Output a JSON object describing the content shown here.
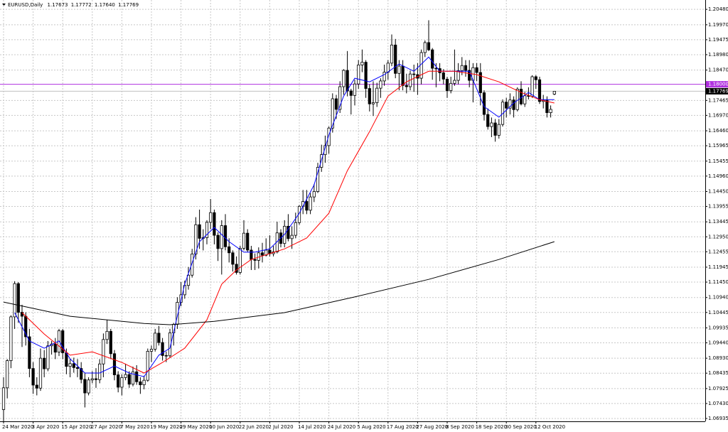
{
  "chart_data": {
    "type": "candlestick",
    "title": "EURUSD,Daily",
    "header_values": [
      "1.17673",
      "1.17772",
      "1.17640",
      "1.17769"
    ],
    "categories": [
      "24 Mar 2020",
      null,
      null,
      null,
      null,
      null,
      null,
      null,
      "3 Apr 2020",
      null,
      null,
      null,
      null,
      null,
      null,
      null,
      "15 Apr 2020",
      null,
      null,
      null,
      null,
      null,
      null,
      null,
      "27 Apr 2020",
      null,
      null,
      null,
      null,
      null,
      null,
      null,
      "7 May 2020",
      null,
      null,
      null,
      null,
      null,
      null,
      null,
      "19 May 2020",
      null,
      null,
      null,
      null,
      null,
      null,
      null,
      "29 May 2020",
      null,
      null,
      null,
      null,
      null,
      null,
      null,
      "10 Jun 2020",
      null,
      null,
      null,
      null,
      null,
      null,
      null,
      "22 Jun 2020",
      null,
      null,
      null,
      null,
      null,
      null,
      null,
      "2 Jul 2020",
      null,
      null,
      null,
      null,
      null,
      null,
      null,
      "14 Jul 2020",
      null,
      null,
      null,
      null,
      null,
      null,
      null,
      "24 Jul 2020",
      null,
      null,
      null,
      null,
      null,
      null,
      null,
      "5 Aug 2020",
      null,
      null,
      null,
      null,
      null,
      null,
      null,
      "17 Aug 2020",
      null,
      null,
      null,
      null,
      null,
      null,
      null,
      "27 Aug 2020",
      null,
      null,
      null,
      null,
      null,
      null,
      null,
      "8 Sep 2020",
      null,
      null,
      null,
      null,
      null,
      null,
      null,
      "18 Sep 2020",
      null,
      null,
      null,
      null,
      null,
      null,
      null,
      "30 Sep 2020",
      null,
      null,
      null,
      null,
      null,
      null,
      null,
      "12 Oct 2020",
      null,
      null,
      null,
      null,
      null
    ],
    "candles": [
      [
        1.0723,
        1.083,
        1.068,
        1.0795
      ],
      [
        1.0795,
        1.089,
        1.076,
        1.0885
      ],
      [
        1.0885,
        1.1035,
        1.086,
        1.103
      ],
      [
        1.103,
        1.1148,
        1.099,
        1.114
      ],
      [
        1.114,
        1.1145,
        1.101,
        1.1045
      ],
      [
        1.1045,
        1.107,
        1.093,
        1.1032
      ],
      [
        1.1032,
        1.1045,
        1.0935,
        1.0964
      ],
      [
        1.0964,
        1.099,
        1.083,
        1.0859
      ],
      [
        1.0859,
        1.088,
        1.0775,
        1.0804
      ],
      [
        1.0804,
        1.083,
        1.077,
        1.0794
      ],
      [
        1.0794,
        1.0925,
        1.0785,
        1.0893
      ],
      [
        1.0893,
        1.092,
        1.083,
        1.0858
      ],
      [
        1.0858,
        1.095,
        1.085,
        1.0934
      ],
      [
        1.0934,
        1.095,
        1.0905,
        1.094
      ],
      [
        1.094,
        1.096,
        1.089,
        1.0913
      ],
      [
        1.0913,
        1.099,
        1.09,
        1.0984
      ],
      [
        1.0984,
        1.099,
        1.089,
        1.0911
      ],
      [
        1.0911,
        1.0925,
        1.084,
        1.0866
      ],
      [
        1.0866,
        1.089,
        1.083,
        1.0875
      ],
      [
        1.0875,
        1.0895,
        1.0845,
        1.0862
      ],
      [
        1.0862,
        1.089,
        1.083,
        1.0859
      ],
      [
        1.0859,
        1.088,
        1.081,
        1.0823
      ],
      [
        1.0823,
        1.0845,
        1.073,
        1.0778
      ],
      [
        1.0778,
        1.083,
        1.077,
        1.0821
      ],
      [
        1.0821,
        1.085,
        1.081,
        1.0825
      ],
      [
        1.0825,
        1.086,
        1.0795,
        1.0822
      ],
      [
        1.0822,
        1.089,
        1.081,
        1.0874
      ],
      [
        1.0874,
        1.0975,
        1.083,
        1.0955
      ],
      [
        1.0955,
        1.102,
        1.094,
        1.0982
      ],
      [
        1.0982,
        1.099,
        1.089,
        1.0908
      ],
      [
        1.0908,
        1.092,
        1.082,
        1.0838
      ],
      [
        1.0838,
        1.085,
        1.078,
        1.0797
      ],
      [
        1.0797,
        1.084,
        1.077,
        1.0829
      ],
      [
        1.0829,
        1.0875,
        1.082,
        1.0839
      ],
      [
        1.0839,
        1.085,
        1.0795,
        1.0807
      ],
      [
        1.0807,
        1.0865,
        1.08,
        1.0848
      ],
      [
        1.0848,
        1.087,
        1.0805,
        1.0815
      ],
      [
        1.0815,
        1.083,
        1.0775,
        1.0805
      ],
      [
        1.0805,
        1.0835,
        1.079,
        1.082
      ],
      [
        1.082,
        1.0925,
        1.0815,
        1.0916
      ],
      [
        1.0916,
        1.0935,
        1.088,
        1.0923
      ],
      [
        1.0923,
        1.099,
        1.0915,
        1.0976
      ],
      [
        1.0976,
        1.1,
        1.0935,
        1.0945
      ],
      [
        1.0945,
        1.096,
        1.0885,
        1.0902
      ],
      [
        1.0902,
        1.0915,
        1.088,
        1.0901
      ],
      [
        1.0901,
        1.099,
        1.0895,
        1.0977
      ],
      [
        1.0977,
        1.101,
        1.0935,
        1.1005
      ],
      [
        1.1005,
        1.1095,
        1.099,
        1.1078
      ],
      [
        1.1078,
        1.1145,
        1.1065,
        1.1103
      ],
      [
        1.1103,
        1.115,
        1.109,
        1.1134
      ],
      [
        1.1134,
        1.1195,
        1.112,
        1.1168
      ],
      [
        1.1168,
        1.1255,
        1.116,
        1.1238
      ],
      [
        1.1238,
        1.136,
        1.122,
        1.1335
      ],
      [
        1.1335,
        1.1385,
        1.1255,
        1.129
      ],
      [
        1.129,
        1.132,
        1.125,
        1.1292
      ],
      [
        1.1292,
        1.135,
        1.127,
        1.1343
      ],
      [
        1.1343,
        1.142,
        1.132,
        1.1375
      ],
      [
        1.1375,
        1.1385,
        1.127,
        1.13
      ],
      [
        1.13,
        1.131,
        1.1215,
        1.1256
      ],
      [
        1.1256,
        1.135,
        1.117,
        1.1332
      ],
      [
        1.1332,
        1.137,
        1.125,
        1.1262
      ],
      [
        1.1262,
        1.129,
        1.121,
        1.1242
      ],
      [
        1.1242,
        1.125,
        1.118,
        1.1204
      ],
      [
        1.1204,
        1.123,
        1.117,
        1.1177
      ],
      [
        1.1177,
        1.1265,
        1.117,
        1.1257
      ],
      [
        1.1257,
        1.135,
        1.125,
        1.1307
      ],
      [
        1.1307,
        1.132,
        1.1245,
        1.1251
      ],
      [
        1.1251,
        1.1265,
        1.1185,
        1.122
      ],
      [
        1.122,
        1.124,
        1.1185,
        1.1217
      ],
      [
        1.1217,
        1.126,
        1.119,
        1.1242
      ],
      [
        1.1242,
        1.1275,
        1.121,
        1.1234
      ],
      [
        1.1234,
        1.129,
        1.123,
        1.1251
      ],
      [
        1.1251,
        1.13,
        1.123,
        1.1239
      ],
      [
        1.1239,
        1.1265,
        1.123,
        1.1245
      ],
      [
        1.1245,
        1.1345,
        1.124,
        1.1308
      ],
      [
        1.1308,
        1.132,
        1.126,
        1.1273
      ],
      [
        1.1273,
        1.135,
        1.126,
        1.133
      ],
      [
        1.133,
        1.137,
        1.128,
        1.1289
      ],
      [
        1.1289,
        1.133,
        1.1255,
        1.13
      ],
      [
        1.13,
        1.1375,
        1.129,
        1.1342
      ],
      [
        1.1342,
        1.14,
        1.1335,
        1.1396
      ],
      [
        1.1396,
        1.145,
        1.137,
        1.1412
      ],
      [
        1.1412,
        1.145,
        1.137,
        1.1383
      ],
      [
        1.1383,
        1.144,
        1.137,
        1.1427
      ],
      [
        1.1427,
        1.147,
        1.141,
        1.1445
      ],
      [
        1.1445,
        1.154,
        1.144,
        1.1525
      ],
      [
        1.1525,
        1.16,
        1.151,
        1.1567
      ],
      [
        1.1567,
        1.163,
        1.154,
        1.1597
      ],
      [
        1.1597,
        1.166,
        1.157,
        1.1655
      ],
      [
        1.1655,
        1.177,
        1.164,
        1.1752
      ],
      [
        1.1752,
        1.1765,
        1.1685,
        1.1717
      ],
      [
        1.1717,
        1.181,
        1.1705,
        1.1792
      ],
      [
        1.1792,
        1.185,
        1.1765,
        1.1846
      ],
      [
        1.1846,
        1.191,
        1.176,
        1.1778
      ],
      [
        1.1778,
        1.1785,
        1.17,
        1.1763
      ],
      [
        1.1763,
        1.1815,
        1.173,
        1.1801
      ],
      [
        1.1801,
        1.188,
        1.1785,
        1.1864
      ],
      [
        1.1864,
        1.1915,
        1.184,
        1.1873
      ],
      [
        1.1873,
        1.188,
        1.1755,
        1.1786
      ],
      [
        1.1786,
        1.18,
        1.171,
        1.1735
      ],
      [
        1.1735,
        1.181,
        1.1695,
        1.1739
      ],
      [
        1.1739,
        1.1805,
        1.1725,
        1.1787
      ],
      [
        1.1787,
        1.182,
        1.1755,
        1.1811
      ],
      [
        1.1811,
        1.1865,
        1.1795,
        1.184
      ],
      [
        1.184,
        1.188,
        1.1815,
        1.187
      ],
      [
        1.187,
        1.1965,
        1.186,
        1.193
      ],
      [
        1.193,
        1.195,
        1.182,
        1.1836
      ],
      [
        1.1836,
        1.188,
        1.178,
        1.186
      ],
      [
        1.186,
        1.188,
        1.178,
        1.1796
      ],
      [
        1.1796,
        1.1835,
        1.177,
        1.1792
      ],
      [
        1.1792,
        1.1845,
        1.178,
        1.1834
      ],
      [
        1.1834,
        1.1865,
        1.1775,
        1.1832
      ],
      [
        1.1832,
        1.187,
        1.1765,
        1.182
      ],
      [
        1.182,
        1.1915,
        1.18,
        1.1905
      ],
      [
        1.1905,
        1.1945,
        1.189,
        1.1938
      ],
      [
        1.1938,
        1.2012,
        1.191,
        1.1914
      ],
      [
        1.1914,
        1.192,
        1.1815,
        1.1853
      ],
      [
        1.1853,
        1.187,
        1.179,
        1.1852
      ],
      [
        1.1852,
        1.187,
        1.181,
        1.1838
      ],
      [
        1.1838,
        1.185,
        1.18,
        1.1817
      ],
      [
        1.1817,
        1.1825,
        1.1755,
        1.1779
      ],
      [
        1.1779,
        1.1825,
        1.177,
        1.1803
      ],
      [
        1.1803,
        1.1915,
        1.1795,
        1.1813
      ],
      [
        1.1813,
        1.187,
        1.18,
        1.1845
      ],
      [
        1.1845,
        1.189,
        1.183,
        1.1862
      ],
      [
        1.1862,
        1.188,
        1.1825,
        1.1846
      ],
      [
        1.1846,
        1.188,
        1.179,
        1.1813
      ],
      [
        1.1813,
        1.187,
        1.174,
        1.1855
      ],
      [
        1.1855,
        1.187,
        1.181,
        1.1839
      ],
      [
        1.1839,
        1.187,
        1.173,
        1.1772
      ],
      [
        1.1772,
        1.178,
        1.168,
        1.17
      ],
      [
        1.17,
        1.172,
        1.165,
        1.166
      ],
      [
        1.166,
        1.169,
        1.1625,
        1.1672
      ],
      [
        1.1672,
        1.1685,
        1.161,
        1.1631
      ],
      [
        1.1631,
        1.1685,
        1.162,
        1.1667
      ],
      [
        1.1667,
        1.175,
        1.166,
        1.1741
      ],
      [
        1.1741,
        1.1755,
        1.169,
        1.1721
      ],
      [
        1.1721,
        1.177,
        1.17,
        1.1748
      ],
      [
        1.1748,
        1.176,
        1.169,
        1.1716
      ],
      [
        1.1716,
        1.179,
        1.171,
        1.1784
      ],
      [
        1.1784,
        1.181,
        1.173,
        1.1735
      ],
      [
        1.1735,
        1.1775,
        1.1725,
        1.1762
      ],
      [
        1.1762,
        1.179,
        1.175,
        1.176
      ],
      [
        1.176,
        1.183,
        1.1755,
        1.1825
      ],
      [
        1.1825,
        1.183,
        1.1785,
        1.1815
      ],
      [
        1.1815,
        1.1825,
        1.1735,
        1.1743
      ],
      [
        1.1743,
        1.1765,
        1.172,
        1.1747
      ],
      [
        1.1747,
        1.176,
        1.169,
        1.1706
      ],
      [
        1.1706,
        1.173,
        1.169,
        1.1717
      ],
      [
        1.17673,
        1.17772,
        1.1764,
        1.17769
      ]
    ],
    "moving_averages": [
      {
        "color": "#0000ff",
        "x": [
          3,
          7,
          11,
          15,
          18,
          22,
          26,
          30,
          34,
          38,
          42,
          45,
          49,
          53,
          57,
          61,
          65,
          68,
          72,
          76,
          80,
          84,
          88,
          92,
          95,
          99,
          103,
          107,
          111,
          115,
          118,
          122,
          126,
          130,
          134,
          138,
          142,
          145,
          149
        ],
        "values": [
          1.1044,
          1.095,
          1.0926,
          1.095,
          1.0891,
          1.0844,
          1.0844,
          1.0867,
          1.0844,
          1.0832,
          1.0903,
          1.0926,
          1.1138,
          1.1279,
          1.1326,
          1.1279,
          1.1244,
          1.1244,
          1.1255,
          1.1303,
          1.1373,
          1.1467,
          1.1632,
          1.1761,
          1.182,
          1.1808,
          1.1832,
          1.1867,
          1.1843,
          1.189,
          1.1843,
          1.1843,
          1.1843,
          1.1726,
          1.1691,
          1.1738,
          1.1773,
          1.1749,
          1.1749
        ]
      },
      {
        "color": "#ff0000",
        "x": [
          5,
          11,
          18,
          24,
          32,
          38,
          43,
          49,
          55,
          59,
          63,
          67,
          76,
          82,
          88,
          93,
          99,
          104,
          109,
          115,
          122,
          128,
          134,
          140,
          145,
          149
        ],
        "values": [
          1.1044,
          1.0973,
          1.0903,
          1.0914,
          1.0879,
          1.0844,
          1.0879,
          1.0926,
          1.102,
          1.1138,
          1.1185,
          1.122,
          1.1255,
          1.1291,
          1.1373,
          1.1514,
          1.1643,
          1.1761,
          1.1808,
          1.1843,
          1.1843,
          1.1832,
          1.1808,
          1.1773,
          1.1749,
          1.1738
        ]
      },
      {
        "color": "#000000",
        "x": [
          0,
          18,
          38,
          45,
          57,
          76,
          95,
          115,
          134,
          149
        ],
        "values": [
          1.1079,
          1.1032,
          1.1008,
          1.1004,
          1.1015,
          1.1044,
          1.1096,
          1.1154,
          1.122,
          1.1279
        ]
      }
    ],
    "hline": {
      "value": 1.18,
      "label": "1.18000",
      "color": "#b030e0"
    },
    "last_price": {
      "value": 1.17769,
      "label": "1.17769"
    },
    "ylim": [
      1.0684,
      1.2079
    ],
    "yticks": [
      {
        "value": 1.2048,
        "label": "1.20480"
      },
      {
        "value": 1.1997,
        "label": "1.19970"
      },
      {
        "value": 1.19475,
        "label": "1.19475"
      },
      {
        "value": 1.1898,
        "label": "1.18980"
      },
      {
        "value": 1.1847,
        "label": "1.18470"
      },
      {
        "value": 1.17465,
        "label": "1.17465"
      },
      {
        "value": 1.1697,
        "label": "1.16970"
      },
      {
        "value": 1.1646,
        "label": "1.16460"
      },
      {
        "value": 1.15965,
        "label": "1.15965"
      },
      {
        "value": 1.15455,
        "label": "1.15455"
      },
      {
        "value": 1.1496,
        "label": "1.14960"
      },
      {
        "value": 1.1445,
        "label": "1.14450"
      },
      {
        "value": 1.13955,
        "label": "1.13955"
      },
      {
        "value": 1.13445,
        "label": "1.13445"
      },
      {
        "value": 1.1295,
        "label": "1.12950"
      },
      {
        "value": 1.12455,
        "label": "1.12455"
      },
      {
        "value": 1.11945,
        "label": "1.11945"
      },
      {
        "value": 1.1145,
        "label": "1.11450"
      },
      {
        "value": 1.1094,
        "label": "1.10940"
      },
      {
        "value": 1.10445,
        "label": "1.10445"
      },
      {
        "value": 1.09935,
        "label": "1.09935"
      },
      {
        "value": 1.0944,
        "label": "1.09440"
      },
      {
        "value": 1.0893,
        "label": "1.08930"
      },
      {
        "value": 1.08435,
        "label": "1.08435"
      },
      {
        "value": 1.07925,
        "label": "1.07925"
      },
      {
        "value": 1.0743,
        "label": "1.07430"
      },
      {
        "value": 1.06935,
        "label": "1.06935"
      }
    ],
    "grid": true
  }
}
